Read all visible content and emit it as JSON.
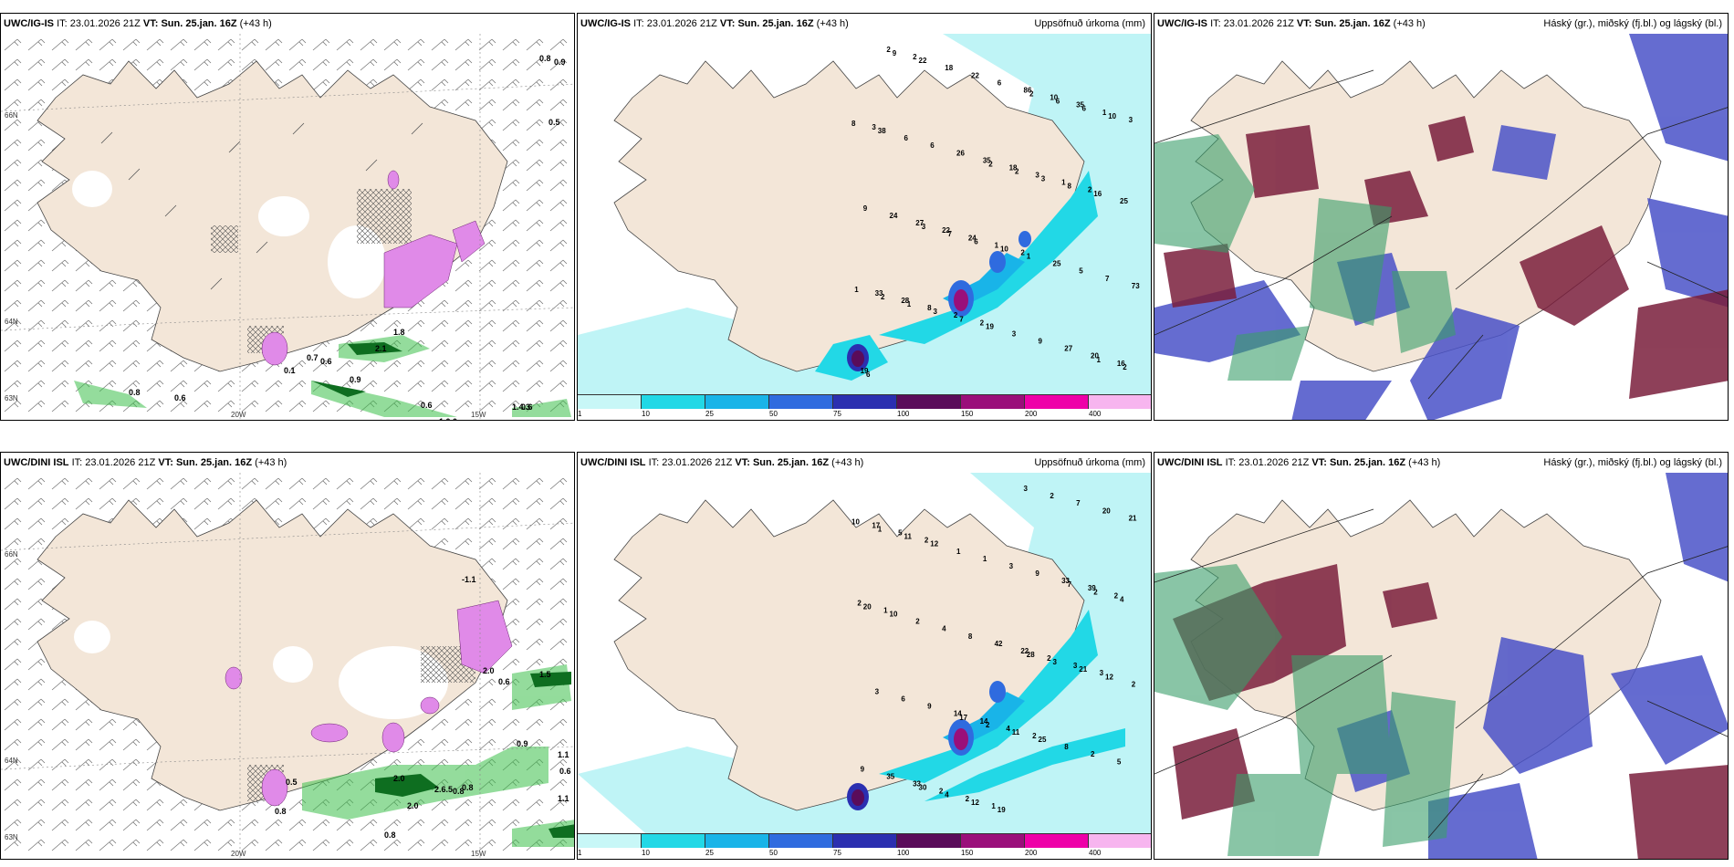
{
  "rows": [
    {
      "model": "UWC/IG-IS",
      "panels": [
        {
          "title": ""
        },
        {
          "title": "Uppsöfnuð úrkoma (mm)"
        },
        {
          "title": "Háský (gr.), miðský (fj.bl.) og lágský (bl.)"
        }
      ]
    },
    {
      "model": "UWC/DINI ISL",
      "panels": [
        {
          "title": ""
        },
        {
          "title": "Uppsöfnuð úrkoma (mm)"
        },
        {
          "title": "Háský (gr.), miðský (fj.bl.) og lágský (bl.)"
        }
      ]
    }
  ],
  "header": {
    "it_label": "IT:",
    "it_value": "23.01.2026 21Z",
    "vt_label": "VT:",
    "vt_value": "Sun. 25.jan. 16Z",
    "lead": "(+43 h)"
  },
  "axis_labels": {
    "lat66": "66N",
    "lat64": "64N",
    "lat63": "63N",
    "lon20": "20W",
    "lon15": "15W"
  },
  "legend": {
    "ticks": [
      "1",
      "10",
      "25",
      "50",
      "75",
      "100",
      "150",
      "200",
      "400"
    ],
    "colors": [
      "#c8f7f7",
      "#22d8e6",
      "#19b4e8",
      "#2f6bdf",
      "#2b2fb0",
      "#5a0c5a",
      "#9a0f7a",
      "#ee00a8",
      "#f7b5ef"
    ]
  },
  "colors": {
    "land": "#f3e6d8",
    "sea_precip": "#bff4f6",
    "snow": "#e08ae8",
    "rain": "#3cc04a",
    "high_cloud": "#3a9e6a",
    "mid_cloud": "#7a1e3c",
    "low_cloud": "#4a52c8"
  },
  "top": {
    "wind_labels": [
      "0.8",
      "0.9",
      "0.5",
      "0.6",
      "0.7",
      "0.6",
      "2.1",
      "0.9",
      "0.8",
      "0.6",
      "0.6",
      "1.0.0",
      "1.4.3",
      "1.8",
      "0.1"
    ],
    "precip_labels": [
      "3",
      "2",
      "2",
      "2",
      "2",
      "3",
      "2",
      "1",
      "2",
      "1",
      "1",
      "8",
      "3",
      "19",
      "24",
      "35",
      "28",
      "18",
      "16",
      "22",
      "10",
      "33",
      "35",
      "20",
      "27",
      "86",
      "73",
      "26",
      "27",
      "24",
      "6",
      "7",
      "6",
      "9",
      "9",
      "22",
      "5",
      "6",
      "3",
      "25",
      "18",
      "25",
      "38",
      "19",
      "16",
      "22",
      "1",
      "8",
      "7",
      "8",
      "9",
      "10",
      "10",
      "3",
      "3",
      "6",
      "6",
      "6",
      "1",
      "2",
      "2",
      "7",
      "6",
      "2",
      "2",
      "1",
      "3",
      "2",
      "1"
    ]
  },
  "bottom": {
    "wind_labels": [
      "-1.1",
      "2.0",
      "2.0",
      "0.5",
      "0.6",
      "0.9",
      "1.1",
      "0.6",
      "1.1",
      "0.8",
      "0.8",
      "2.0",
      "1.5",
      "0.8",
      "2.6.5",
      "0.8"
    ],
    "precip_labels": [
      "1",
      "1",
      "3",
      "2",
      "2",
      "2",
      "2",
      "3",
      "5",
      "4",
      "2",
      "2",
      "2",
      "17",
      "14",
      "39",
      "33",
      "22",
      "21",
      "14",
      "33",
      "35",
      "42",
      "20",
      "9",
      "9",
      "9",
      "8",
      "7",
      "6",
      "3",
      "5",
      "4",
      "2",
      "3",
      "1",
      "2",
      "2",
      "3",
      "2",
      "1",
      "8",
      "10",
      "19",
      "12",
      "12",
      "25",
      "20",
      "12",
      "21",
      "11",
      "11",
      "4",
      "4",
      "3",
      "1",
      "2",
      "2",
      "30",
      "28",
      "10",
      "17",
      "7"
    ]
  }
}
